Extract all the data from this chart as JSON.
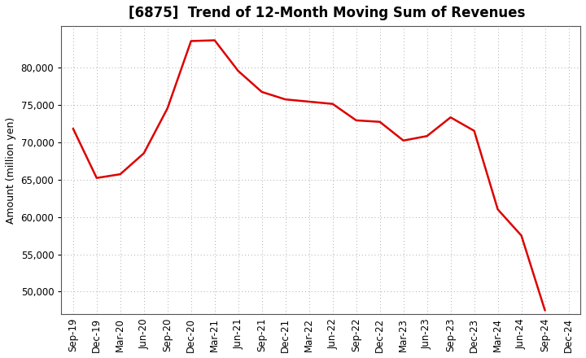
{
  "title": "[6875]  Trend of 12-Month Moving Sum of Revenues",
  "ylabel": "Amount (million yen)",
  "line_color": "#dd0000",
  "background_color": "#ffffff",
  "grid_color": "#aaaaaa",
  "plot_bg_color": "#ffffff",
  "labels": [
    "Sep-19",
    "Dec-19",
    "Mar-20",
    "Jun-20",
    "Sep-20",
    "Dec-20",
    "Mar-21",
    "Jun-21",
    "Sep-21",
    "Dec-21",
    "Mar-22",
    "Jun-22",
    "Sep-22",
    "Dec-22",
    "Mar-23",
    "Jun-23",
    "Sep-23",
    "Dec-23",
    "Mar-24",
    "Jun-24",
    "Sep-24",
    "Dec-24"
  ],
  "values": [
    71800,
    65200,
    65700,
    68500,
    74500,
    83500,
    83600,
    79500,
    76700,
    75700,
    75400,
    75100,
    72900,
    72700,
    70200,
    70800,
    73300,
    71500,
    61000,
    57500,
    47500,
    null
  ],
  "ylim_low": 47000,
  "ylim_high": 85500,
  "yticks": [
    50000,
    55000,
    60000,
    65000,
    70000,
    75000,
    80000
  ],
  "title_fontsize": 12,
  "ylabel_fontsize": 9,
  "tick_fontsize": 8.5,
  "line_width": 1.8
}
